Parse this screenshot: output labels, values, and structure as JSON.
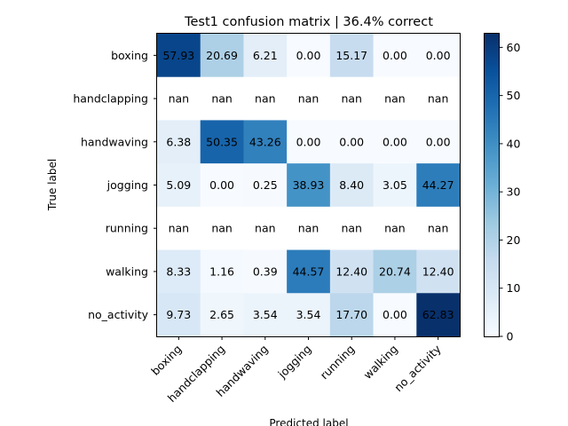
{
  "chart_data": {
    "type": "heatmap",
    "title": "Test1 confusion matrix | 36.4% correct",
    "xlabel": "Predicted label",
    "ylabel": "True label",
    "x_categories": [
      "boxing",
      "handclapping",
      "handwaving",
      "jogging",
      "running",
      "walking",
      "no_activity"
    ],
    "y_categories": [
      "boxing",
      "handclapping",
      "handwaving",
      "jogging",
      "running",
      "walking",
      "no_activity"
    ],
    "values": [
      [
        57.93,
        20.69,
        6.21,
        0.0,
        15.17,
        0.0,
        0.0
      ],
      [
        null,
        null,
        null,
        null,
        null,
        null,
        null
      ],
      [
        6.38,
        50.35,
        43.26,
        0.0,
        0.0,
        0.0,
        0.0
      ],
      [
        5.09,
        0.0,
        0.25,
        38.93,
        8.4,
        3.05,
        44.27
      ],
      [
        null,
        null,
        null,
        null,
        null,
        null,
        null
      ],
      [
        8.33,
        1.16,
        0.39,
        44.57,
        12.4,
        20.74,
        12.4
      ],
      [
        9.73,
        2.65,
        3.54,
        3.54,
        17.7,
        0.0,
        62.83
      ]
    ],
    "value_labels": [
      [
        "57.93",
        "20.69",
        "6.21",
        "0.00",
        "15.17",
        "0.00",
        "0.00"
      ],
      [
        "nan",
        "nan",
        "nan",
        "nan",
        "nan",
        "nan",
        "nan"
      ],
      [
        "6.38",
        "50.35",
        "43.26",
        "0.00",
        "0.00",
        "0.00",
        "0.00"
      ],
      [
        "5.09",
        "0.00",
        "0.25",
        "38.93",
        "8.40",
        "3.05",
        "44.27"
      ],
      [
        "nan",
        "nan",
        "nan",
        "nan",
        "nan",
        "nan",
        "nan"
      ],
      [
        "8.33",
        "1.16",
        "0.39",
        "44.57",
        "12.40",
        "20.74",
        "12.40"
      ],
      [
        "9.73",
        "2.65",
        "3.54",
        "3.54",
        "17.70",
        "0.00",
        "62.83"
      ]
    ],
    "colorbar": {
      "vmin": 0,
      "vmax": 62.83,
      "ticks": [
        0,
        10,
        20,
        30,
        40,
        50,
        60
      ],
      "tick_labels": [
        "0",
        "10",
        "20",
        "30",
        "40",
        "50",
        "60"
      ],
      "colormap": "Blues"
    },
    "grid": false,
    "text_threshold": 31.4
  }
}
